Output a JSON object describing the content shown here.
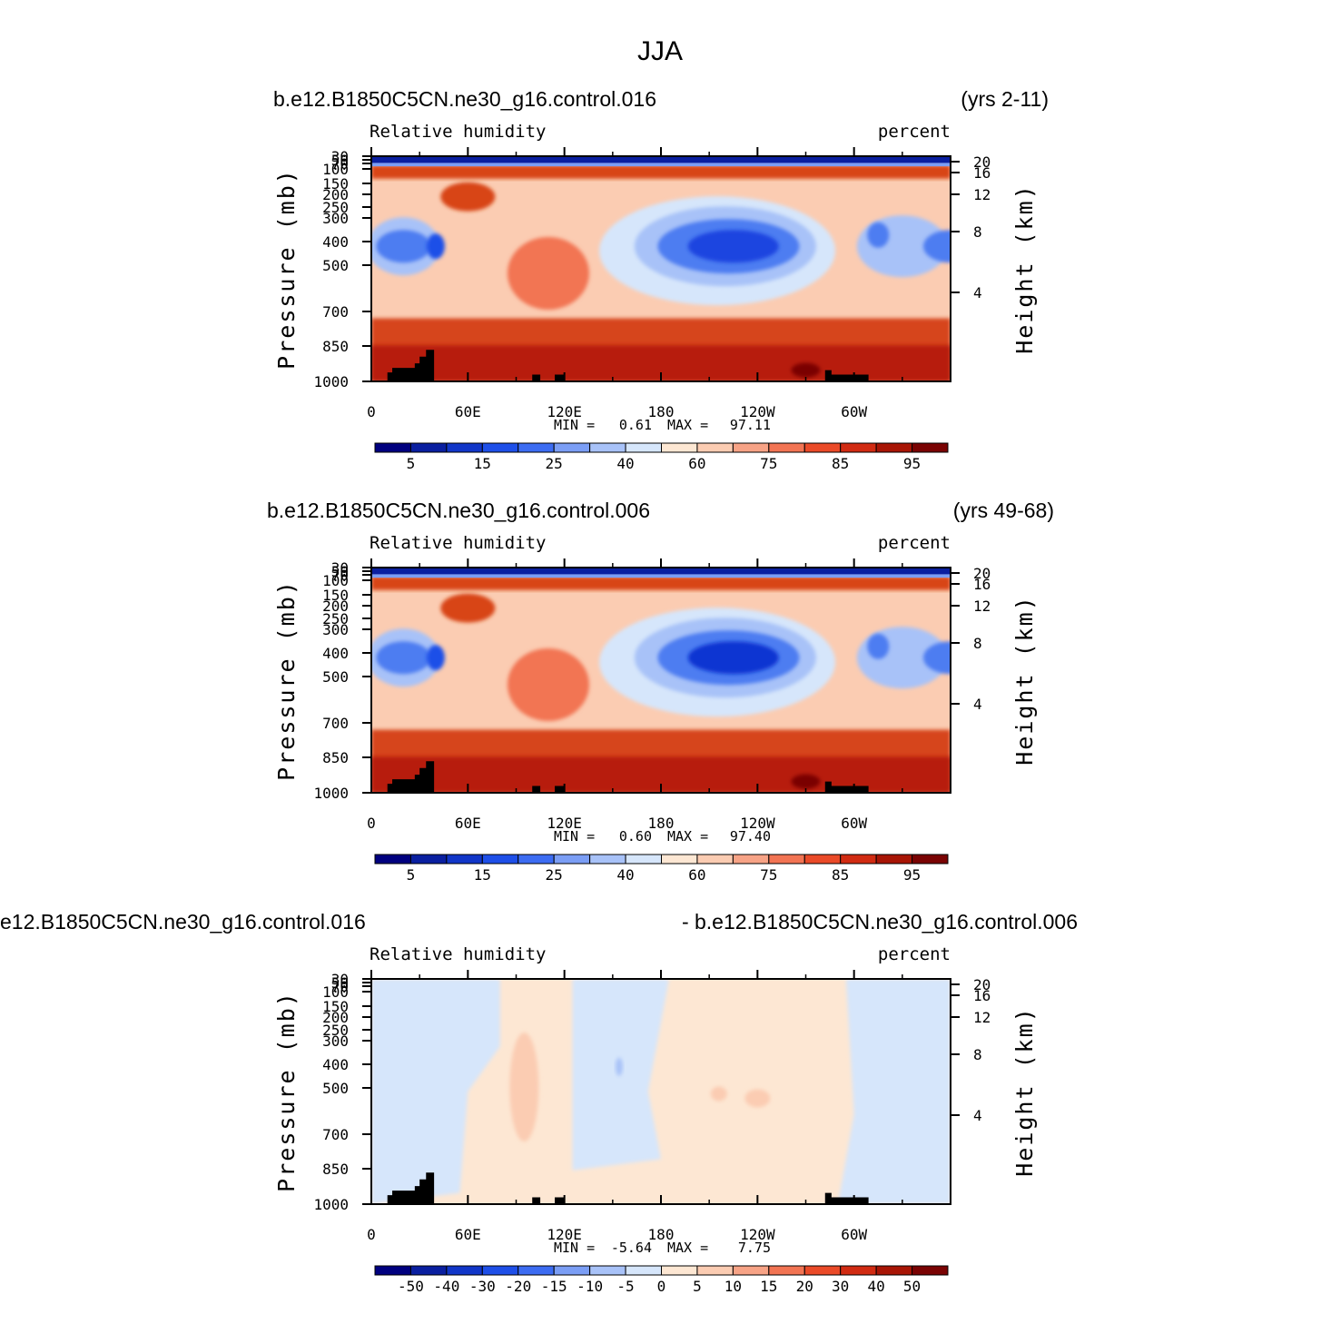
{
  "page_title": "JJA",
  "chart_data": [
    {
      "type": "contour",
      "left_title": "b.e12.B1850C5CN.ne30_g16.control.016",
      "right_title": "(yrs 2-11)",
      "variable": "Relative humidity",
      "units": "percent",
      "ylabel": "Pressure (mb)",
      "ylabel_right": "Height (km)",
      "x_ticks": [
        "0",
        "60E",
        "120E",
        "180",
        "120W",
        "60W"
      ],
      "y_ticks": [
        "30",
        "50",
        "70",
        "100",
        "150",
        "200",
        "250",
        "300",
        "400",
        "500",
        "700",
        "850",
        "1000"
      ],
      "y_ticks_right": [
        "20",
        "16",
        "12",
        "8",
        "4"
      ],
      "min_label": "MIN =",
      "min_value": "0.61",
      "max_label": "MAX =",
      "max_value": "97.11",
      "colorbar_labels": [
        "5",
        "15",
        "25",
        "40",
        "60",
        "75",
        "85",
        "95"
      ],
      "colorbar_colors": [
        "#00007f",
        "#0a1fa0",
        "#1136c8",
        "#1e4fe8",
        "#3c6cf2",
        "#7b9ef5",
        "#a8c2f8",
        "#d6e6fb",
        "#fde7d3",
        "#fbccb2",
        "#f7a386",
        "#f27453",
        "#ea4a28",
        "#d12b12",
        "#a81505",
        "#7a0303"
      ],
      "field_colors": {
        "top": "#0a1fa0",
        "high": "#d84414",
        "mid": "#f6a688",
        "low": "#d6451a",
        "dry": "#4e7df1",
        "dry2": "#a8c2f8",
        "very_dry": "#1d44e0",
        "surface": "#b71e0c",
        "peak": "#7a0303"
      }
    },
    {
      "type": "contour",
      "left_title": "b.e12.B1850C5CN.ne30_g16.control.006",
      "right_title": "(yrs 49-68)",
      "variable": "Relative humidity",
      "units": "percent",
      "ylabel": "Pressure (mb)",
      "ylabel_right": "Height (km)",
      "x_ticks": [
        "0",
        "60E",
        "120E",
        "180",
        "120W",
        "60W"
      ],
      "y_ticks": [
        "30",
        "50",
        "70",
        "100",
        "150",
        "200",
        "250",
        "300",
        "400",
        "500",
        "700",
        "850",
        "1000"
      ],
      "y_ticks_right": [
        "20",
        "16",
        "12",
        "8",
        "4"
      ],
      "min_label": "MIN =",
      "min_value": "0.60",
      "max_label": "MAX =",
      "max_value": "97.40",
      "colorbar_labels": [
        "5",
        "15",
        "25",
        "40",
        "60",
        "75",
        "85",
        "95"
      ],
      "colorbar_colors": [
        "#00007f",
        "#0a1fa0",
        "#1136c8",
        "#1e4fe8",
        "#3c6cf2",
        "#7b9ef5",
        "#a8c2f8",
        "#d6e6fb",
        "#fde7d3",
        "#fbccb2",
        "#f7a386",
        "#f27453",
        "#ea4a28",
        "#d12b12",
        "#a81505",
        "#7a0303"
      ],
      "field_colors": {
        "top": "#0a1fa0",
        "high": "#d84414",
        "mid": "#f6a688",
        "low": "#d6451a",
        "dry": "#4e7df1",
        "dry2": "#a8c2f8",
        "very_dry": "#0f35d2",
        "surface": "#b71e0c",
        "peak": "#7a0303"
      }
    },
    {
      "type": "contour",
      "left_title": "e12.B1850C5CN.ne30_g16.control.016",
      "right_title": "- b.e12.B1850C5CN.ne30_g16.control.006",
      "variable": "Relative humidity",
      "units": "percent",
      "ylabel": "Pressure (mb)",
      "ylabel_right": "Height (km)",
      "x_ticks": [
        "0",
        "60E",
        "120E",
        "180",
        "120W",
        "60W"
      ],
      "y_ticks": [
        "30",
        "50",
        "70",
        "100",
        "150",
        "200",
        "250",
        "300",
        "400",
        "500",
        "700",
        "850",
        "1000"
      ],
      "y_ticks_right": [
        "20",
        "16",
        "12",
        "8",
        "4"
      ],
      "min_label": "MIN =",
      "min_value": "-5.64",
      "max_label": "MAX =",
      "max_value": "7.75",
      "colorbar_labels": [
        "-50",
        "-40",
        "-30",
        "-20",
        "-15",
        "-10",
        "-5",
        "0",
        "5",
        "10",
        "15",
        "20",
        "30",
        "40",
        "50"
      ],
      "colorbar_colors": [
        "#00007f",
        "#0a1fa0",
        "#1136c8",
        "#1e4fe8",
        "#3c6cf2",
        "#7b9ef5",
        "#a8c2f8",
        "#d6e6fb",
        "#fde7d3",
        "#fbccb2",
        "#f7a386",
        "#f27453",
        "#ea4a28",
        "#d12b12",
        "#a81505",
        "#7a0303"
      ],
      "field_colors": {
        "neg": "#d6e6fb",
        "pos": "#fde7d3",
        "pos2": "#fbccb2",
        "neg2": "#a8c2f8"
      }
    }
  ]
}
